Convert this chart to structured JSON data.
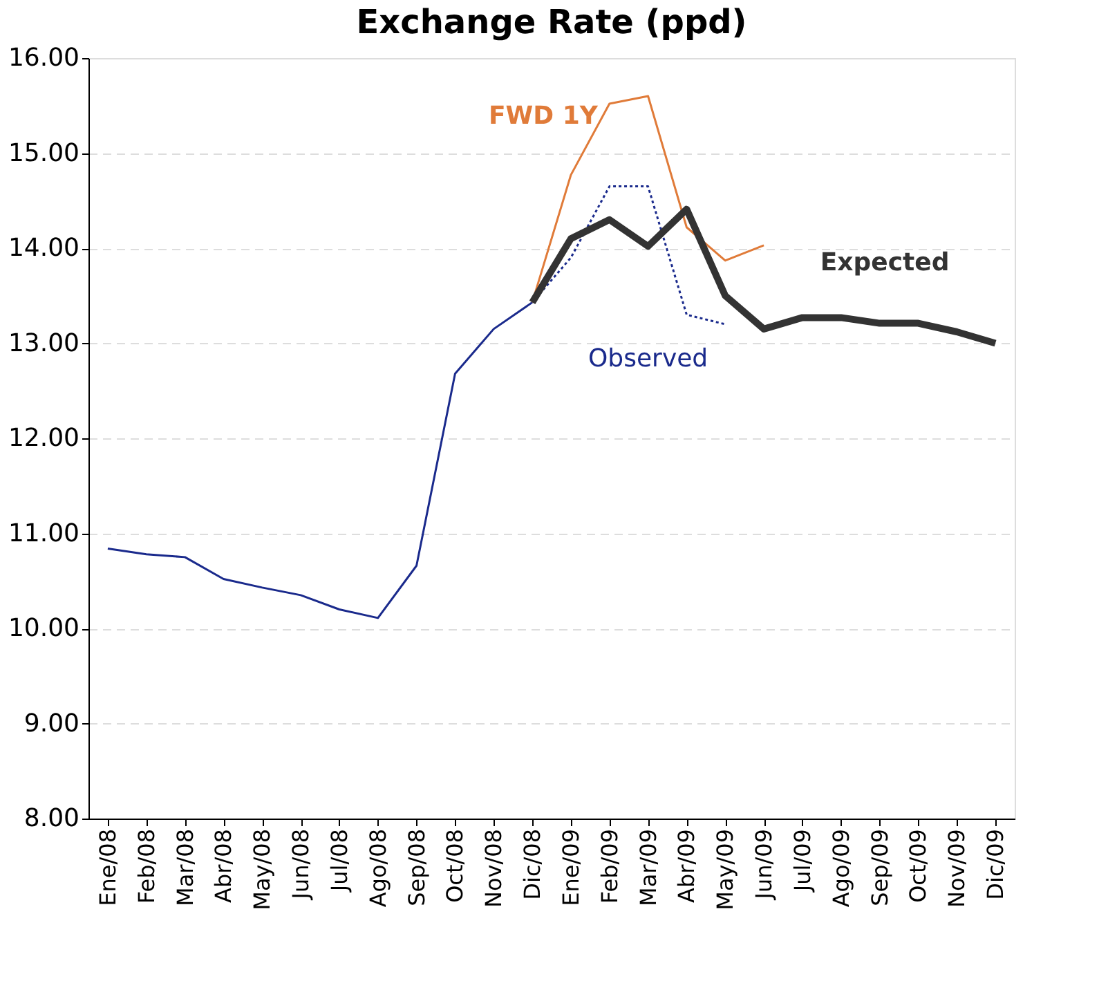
{
  "chart_data": {
    "type": "line",
    "title": "Exchange Rate (ppd)",
    "categories": [
      "Ene/08",
      "Feb/08",
      "Mar/08",
      "Abr/08",
      "May/08",
      "Jun/08",
      "Jul/08",
      "Ago/08",
      "Sep/08",
      "Oct/08",
      "Nov/08",
      "Dic/08",
      "Ene/09",
      "Feb/09",
      "Mar/09",
      "Abr/09",
      "May/09",
      "Jun/09",
      "Jul/09",
      "Ago/09",
      "Sep/09",
      "Oct/09",
      "Nov/09",
      "Dic/09"
    ],
    "series": [
      {
        "color": "#1a2a8c",
        "line_style": "solid",
        "values": [
          10.84,
          10.78,
          10.75,
          10.52,
          10.43,
          10.35,
          10.2,
          10.11,
          10.66,
          12.68,
          13.15,
          13.43,
          null,
          null,
          null,
          null,
          null,
          null,
          null,
          null,
          null,
          null,
          null,
          null
        ]
      },
      {
        "name": "Observed",
        "color": "#1a2a8c",
        "line_style": "dotted",
        "values": [
          null,
          null,
          null,
          null,
          null,
          null,
          null,
          null,
          null,
          null,
          null,
          13.43,
          13.9,
          14.65,
          14.65,
          13.3,
          13.2,
          null,
          null,
          null,
          null,
          null,
          null,
          null
        ]
      },
      {
        "name": "FWD 1Y",
        "color": "#e07b39",
        "line_style": "solid",
        "values": [
          null,
          null,
          null,
          null,
          null,
          null,
          null,
          null,
          null,
          null,
          null,
          13.43,
          14.77,
          15.52,
          15.6,
          14.22,
          13.87,
          14.03,
          null,
          null,
          null,
          null,
          null,
          null
        ]
      },
      {
        "name": "Expected",
        "color": "#333333",
        "line_style": "solid",
        "values": [
          null,
          null,
          null,
          null,
          null,
          null,
          null,
          null,
          null,
          null,
          null,
          13.43,
          14.1,
          14.3,
          14.02,
          14.41,
          13.5,
          13.15,
          13.27,
          13.27,
          13.21,
          13.21,
          13.12,
          13.0
        ]
      }
    ],
    "ylim": [
      8,
      16
    ],
    "yticks": [
      {
        "value": 8,
        "label": "8.00"
      },
      {
        "value": 9,
        "label": "9.00"
      },
      {
        "value": 10,
        "label": "10.00"
      },
      {
        "value": 11,
        "label": "11.00"
      },
      {
        "value": 12,
        "label": "12.00"
      },
      {
        "value": 13,
        "label": "13.00"
      },
      {
        "value": 14,
        "label": "14.00"
      },
      {
        "value": 15,
        "label": "15.00"
      },
      {
        "value": 16,
        "label": "16.00"
      }
    ],
    "grid": "y",
    "marker": "none"
  }
}
